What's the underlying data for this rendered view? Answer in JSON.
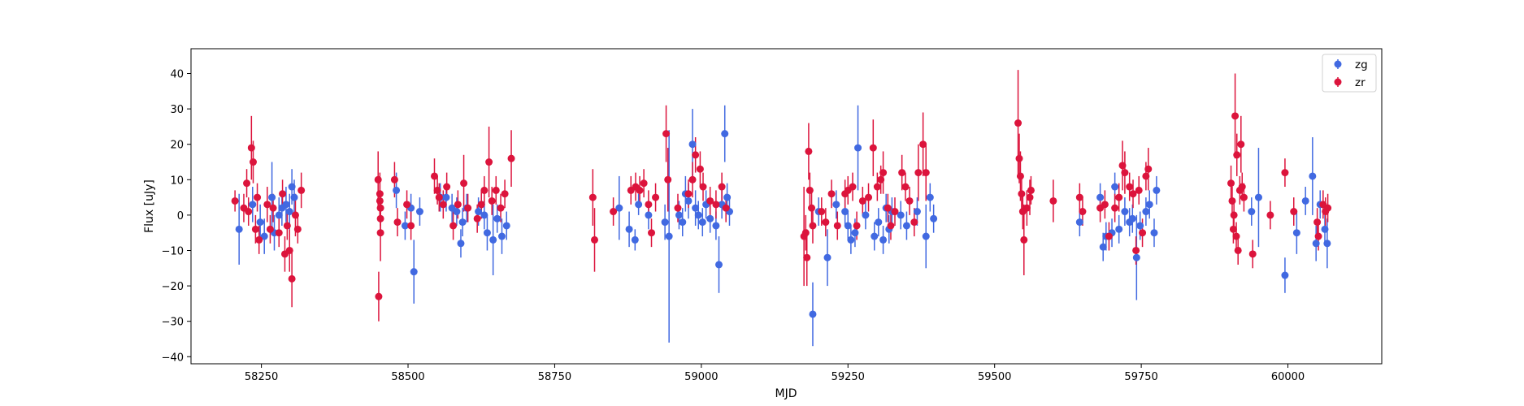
{
  "chart_data": {
    "type": "scatter",
    "title": "",
    "xlabel": "MJD",
    "ylabel": "Flux [uJy]",
    "xlim": [
      58130,
      60160
    ],
    "ylim": [
      -42,
      47
    ],
    "xticks": [
      58250,
      58500,
      58750,
      59000,
      59250,
      59500,
      59750,
      60000
    ],
    "yticks": [
      -40,
      -30,
      -20,
      -10,
      0,
      10,
      20,
      30,
      40
    ],
    "grid": false,
    "legend": "top-right",
    "error_bars": true,
    "series": [
      {
        "name": "zg",
        "color": "#4169e1",
        "points": [
          [
            58212,
            -4,
            10
          ],
          [
            58235,
            3,
            5
          ],
          [
            58248,
            -2,
            5
          ],
          [
            58255,
            -6,
            5
          ],
          [
            58268,
            5,
            10
          ],
          [
            58272,
            -5,
            5
          ],
          [
            58280,
            0,
            5
          ],
          [
            58285,
            2,
            5
          ],
          [
            58292,
            3,
            5
          ],
          [
            58298,
            1,
            5
          ],
          [
            58302,
            8,
            5
          ],
          [
            58306,
            5,
            5
          ],
          [
            58480,
            7,
            5
          ],
          [
            58495,
            -3,
            4
          ],
          [
            58505,
            2,
            4
          ],
          [
            58510,
            -16,
            9
          ],
          [
            58520,
            1,
            4
          ],
          [
            58555,
            5,
            4
          ],
          [
            58565,
            5,
            4
          ],
          [
            58575,
            2,
            4
          ],
          [
            58583,
            1,
            4
          ],
          [
            58590,
            -8,
            4
          ],
          [
            58593,
            -2,
            4
          ],
          [
            58600,
            2,
            4
          ],
          [
            58620,
            1,
            4
          ],
          [
            58625,
            3,
            4
          ],
          [
            58630,
            0,
            4
          ],
          [
            58635,
            -5,
            5
          ],
          [
            58645,
            -7,
            10
          ],
          [
            58652,
            -1,
            4
          ],
          [
            58660,
            -6,
            5
          ],
          [
            58668,
            -3,
            4
          ],
          [
            58860,
            2,
            9
          ],
          [
            58877,
            -4,
            5
          ],
          [
            58887,
            -7,
            3
          ],
          [
            58893,
            3,
            3
          ],
          [
            58910,
            0,
            4
          ],
          [
            58938,
            -2,
            5
          ],
          [
            58945,
            -6,
            30
          ],
          [
            58962,
            0,
            4
          ],
          [
            58968,
            -2,
            4
          ],
          [
            58973,
            6,
            5
          ],
          [
            58978,
            4,
            5
          ],
          [
            58985,
            20,
            10
          ],
          [
            58990,
            2,
            5
          ],
          [
            58995,
            0,
            4
          ],
          [
            59002,
            -2,
            4
          ],
          [
            59008,
            3,
            4
          ],
          [
            59015,
            -1,
            4
          ],
          [
            59025,
            -3,
            4
          ],
          [
            59030,
            -14,
            8
          ],
          [
            59035,
            3,
            4
          ],
          [
            59040,
            23,
            8
          ],
          [
            59044,
            5,
            4
          ],
          [
            59048,
            1,
            4
          ],
          [
            59190,
            -28,
            9
          ],
          [
            59200,
            1,
            4
          ],
          [
            59215,
            -12,
            8
          ],
          [
            59230,
            3,
            4
          ],
          [
            59245,
            1,
            4
          ],
          [
            59250,
            -3,
            4
          ],
          [
            59255,
            -7,
            4
          ],
          [
            59262,
            -5,
            4
          ],
          [
            59267,
            19,
            12
          ],
          [
            59280,
            0,
            4
          ],
          [
            59295,
            -6,
            4
          ],
          [
            59302,
            -2,
            4
          ],
          [
            59310,
            -7,
            4
          ],
          [
            59315,
            2,
            4
          ],
          [
            59320,
            -4,
            4
          ],
          [
            59325,
            1,
            4
          ],
          [
            59340,
            0,
            4
          ],
          [
            59350,
            -3,
            4
          ],
          [
            59368,
            1,
            4
          ],
          [
            59383,
            -6,
            9
          ],
          [
            59390,
            5,
            4
          ],
          [
            59396,
            -1,
            4
          ],
          [
            59645,
            -2,
            4
          ],
          [
            59680,
            5,
            4
          ],
          [
            59685,
            -9,
            4
          ],
          [
            59690,
            -6,
            4
          ],
          [
            59700,
            -5,
            4
          ],
          [
            59705,
            8,
            4
          ],
          [
            59712,
            -4,
            4
          ],
          [
            59722,
            1,
            4
          ],
          [
            59730,
            -2,
            4
          ],
          [
            59735,
            -1,
            4
          ],
          [
            59742,
            -12,
            12
          ],
          [
            59748,
            -3,
            4
          ],
          [
            59758,
            1,
            4
          ],
          [
            59764,
            3,
            4
          ],
          [
            59772,
            -5,
            4
          ],
          [
            59776,
            7,
            4
          ],
          [
            59950,
            5,
            14
          ],
          [
            59938,
            1,
            4
          ],
          [
            59995,
            -17,
            5
          ],
          [
            60015,
            -5,
            6
          ],
          [
            60030,
            4,
            4
          ],
          [
            60042,
            11,
            11
          ],
          [
            60048,
            -8,
            5
          ],
          [
            60055,
            3,
            4
          ],
          [
            60063,
            -4,
            4
          ],
          [
            60067,
            -8,
            7
          ]
        ]
      },
      {
        "name": "zr",
        "color": "#dc143c",
        "points": [
          [
            58205,
            4,
            3
          ],
          [
            58220,
            2,
            4
          ],
          [
            58225,
            9,
            4
          ],
          [
            58228,
            1,
            4
          ],
          [
            58233,
            19,
            9
          ],
          [
            58236,
            15,
            6
          ],
          [
            58240,
            -4,
            4
          ],
          [
            58243,
            5,
            4
          ],
          [
            58246,
            -7,
            4
          ],
          [
            58260,
            3,
            5
          ],
          [
            58265,
            -4,
            4
          ],
          [
            58270,
            2,
            4
          ],
          [
            58280,
            -5,
            4
          ],
          [
            58286,
            6,
            4
          ],
          [
            58290,
            -11,
            5
          ],
          [
            58294,
            -3,
            4
          ],
          [
            58298,
            -10,
            6
          ],
          [
            58302,
            -18,
            8
          ],
          [
            58308,
            0,
            6
          ],
          [
            58312,
            -4,
            4
          ],
          [
            58318,
            7,
            5
          ],
          [
            58449,
            10,
            8
          ],
          [
            58450,
            -23,
            7
          ],
          [
            58452,
            6,
            6
          ],
          [
            58452,
            4,
            6
          ],
          [
            58453,
            2,
            5
          ],
          [
            58453,
            -1,
            4
          ],
          [
            58453,
            -5,
            8
          ],
          [
            58477,
            10,
            5
          ],
          [
            58482,
            -2,
            4
          ],
          [
            58498,
            3,
            4
          ],
          [
            58505,
            -3,
            4
          ],
          [
            58545,
            11,
            5
          ],
          [
            58550,
            7,
            4
          ],
          [
            58553,
            5,
            4
          ],
          [
            58560,
            3,
            4
          ],
          [
            58566,
            8,
            4
          ],
          [
            58577,
            -3,
            4
          ],
          [
            58585,
            3,
            4
          ],
          [
            58595,
            9,
            8
          ],
          [
            58602,
            2,
            4
          ],
          [
            58618,
            -1,
            4
          ],
          [
            58625,
            3,
            4
          ],
          [
            58630,
            7,
            4
          ],
          [
            58638,
            15,
            10
          ],
          [
            58643,
            4,
            4
          ],
          [
            58650,
            7,
            4
          ],
          [
            58658,
            2,
            4
          ],
          [
            58665,
            6,
            4
          ],
          [
            58676,
            16,
            8
          ],
          [
            58815,
            5,
            8
          ],
          [
            58818,
            -7,
            9
          ],
          [
            58850,
            1,
            4
          ],
          [
            58880,
            7,
            4
          ],
          [
            58888,
            8,
            4
          ],
          [
            58895,
            7,
            4
          ],
          [
            58902,
            9,
            4
          ],
          [
            58910,
            3,
            4
          ],
          [
            58915,
            -5,
            4
          ],
          [
            58922,
            5,
            4
          ],
          [
            58940,
            23,
            8
          ],
          [
            58943,
            10,
            9
          ],
          [
            58960,
            2,
            4
          ],
          [
            58978,
            6,
            4
          ],
          [
            58985,
            10,
            5
          ],
          [
            58990,
            17,
            5
          ],
          [
            58998,
            13,
            5
          ],
          [
            59003,
            8,
            4
          ],
          [
            59015,
            4,
            4
          ],
          [
            59025,
            3,
            4
          ],
          [
            59035,
            8,
            4
          ],
          [
            59042,
            2,
            4
          ],
          [
            59175,
            -6,
            14
          ],
          [
            59178,
            -5,
            5
          ],
          [
            59180,
            -12,
            8
          ],
          [
            59183,
            18,
            8
          ],
          [
            59185,
            7,
            5
          ],
          [
            59188,
            2,
            5
          ],
          [
            59190,
            -3,
            5
          ],
          [
            59205,
            1,
            4
          ],
          [
            59212,
            -2,
            4
          ],
          [
            59222,
            6,
            4
          ],
          [
            59232,
            -3,
            4
          ],
          [
            59245,
            6,
            4
          ],
          [
            59250,
            7,
            4
          ],
          [
            59258,
            8,
            4
          ],
          [
            59265,
            -3,
            4
          ],
          [
            59275,
            4,
            4
          ],
          [
            59285,
            5,
            4
          ],
          [
            59293,
            19,
            8
          ],
          [
            59300,
            8,
            4
          ],
          [
            59306,
            10,
            4
          ],
          [
            59310,
            12,
            6
          ],
          [
            59318,
            2,
            4
          ],
          [
            59323,
            -3,
            4
          ],
          [
            59330,
            1,
            4
          ],
          [
            59342,
            12,
            5
          ],
          [
            59348,
            8,
            4
          ],
          [
            59355,
            4,
            4
          ],
          [
            59363,
            -2,
            4
          ],
          [
            59370,
            12,
            8
          ],
          [
            59378,
            20,
            9
          ],
          [
            59383,
            12,
            8
          ],
          [
            59540,
            26,
            15
          ],
          [
            59542,
            16,
            7
          ],
          [
            59544,
            11,
            7
          ],
          [
            59546,
            6,
            5
          ],
          [
            59548,
            1,
            5
          ],
          [
            59550,
            -7,
            10
          ],
          [
            59555,
            2,
            5
          ],
          [
            59560,
            5,
            5
          ],
          [
            59562,
            7,
            4
          ],
          [
            59600,
            4,
            6
          ],
          [
            59645,
            5,
            4
          ],
          [
            59650,
            1,
            4
          ],
          [
            59680,
            2,
            4
          ],
          [
            59688,
            3,
            4
          ],
          [
            59695,
            -6,
            4
          ],
          [
            59705,
            2,
            4
          ],
          [
            59712,
            5,
            4
          ],
          [
            59718,
            14,
            7
          ],
          [
            59722,
            12,
            6
          ],
          [
            59730,
            8,
            4
          ],
          [
            59736,
            6,
            4
          ],
          [
            59741,
            -10,
            4
          ],
          [
            59746,
            7,
            4
          ],
          [
            59752,
            -5,
            4
          ],
          [
            59758,
            11,
            4
          ],
          [
            59762,
            13,
            6
          ],
          [
            59903,
            9,
            5
          ],
          [
            59905,
            4,
            4
          ],
          [
            59907,
            -4,
            4
          ],
          [
            59908,
            0,
            4
          ],
          [
            59910,
            28,
            12
          ],
          [
            59912,
            -6,
            4
          ],
          [
            59913,
            17,
            6
          ],
          [
            59915,
            -10,
            4
          ],
          [
            59918,
            7,
            4
          ],
          [
            59920,
            20,
            8
          ],
          [
            59922,
            8,
            4
          ],
          [
            59925,
            5,
            4
          ],
          [
            59940,
            -11,
            4
          ],
          [
            59970,
            0,
            4
          ],
          [
            59995,
            12,
            4
          ],
          [
            60010,
            1,
            4
          ],
          [
            60050,
            -2,
            4
          ],
          [
            60052,
            -6,
            4
          ],
          [
            60060,
            3,
            4
          ],
          [
            60064,
            1,
            4
          ],
          [
            60068,
            2,
            4
          ]
        ]
      }
    ]
  }
}
